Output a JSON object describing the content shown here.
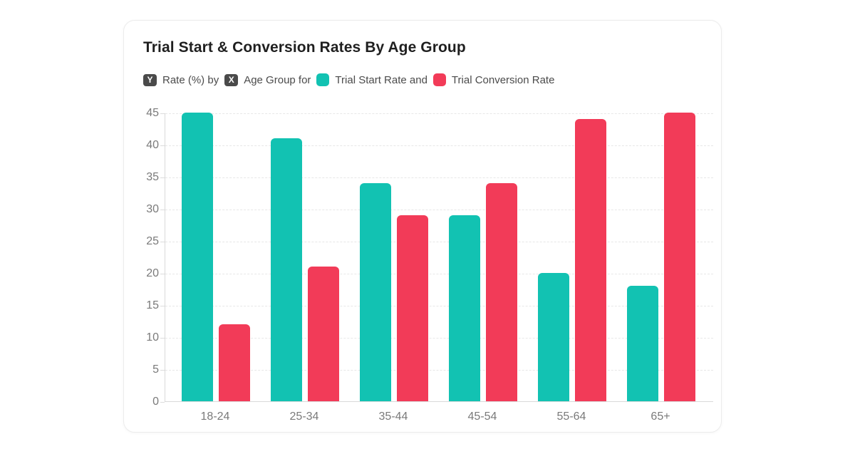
{
  "card": {
    "title": "Trial Start & Conversion Rates By Age Group"
  },
  "subtitle": {
    "y_badge": "Y",
    "y_label": "Rate (%) by",
    "x_badge": "X",
    "x_label": "Age Group for",
    "series1_label": "Trial Start Rate and",
    "series2_label": "Trial Conversion Rate"
  },
  "colors": {
    "series1": "#12C2B2",
    "series2": "#F23B58",
    "badge_bg": "#4A4A4A",
    "grid": "#E7E7E7",
    "axis": "#D9D9D9",
    "tick_text": "#7A7A7A"
  },
  "chart_data": {
    "type": "bar",
    "title": "Trial Start & Conversion Rates By Age Group",
    "xlabel": "Age Group",
    "ylabel": "Rate (%)",
    "categories": [
      "18-24",
      "25-34",
      "35-44",
      "45-54",
      "55-64",
      "65+"
    ],
    "series": [
      {
        "name": "Trial Start Rate",
        "color": "#12C2B2",
        "values": [
          45,
          41,
          34,
          29,
          20,
          18
        ]
      },
      {
        "name": "Trial Conversion Rate",
        "color": "#F23B58",
        "values": [
          12,
          21,
          29,
          34,
          44,
          45
        ]
      }
    ],
    "ylim": [
      0,
      45
    ],
    "ytick_step": 5,
    "grid": "horizontal-dashed",
    "legend_position": "top"
  }
}
